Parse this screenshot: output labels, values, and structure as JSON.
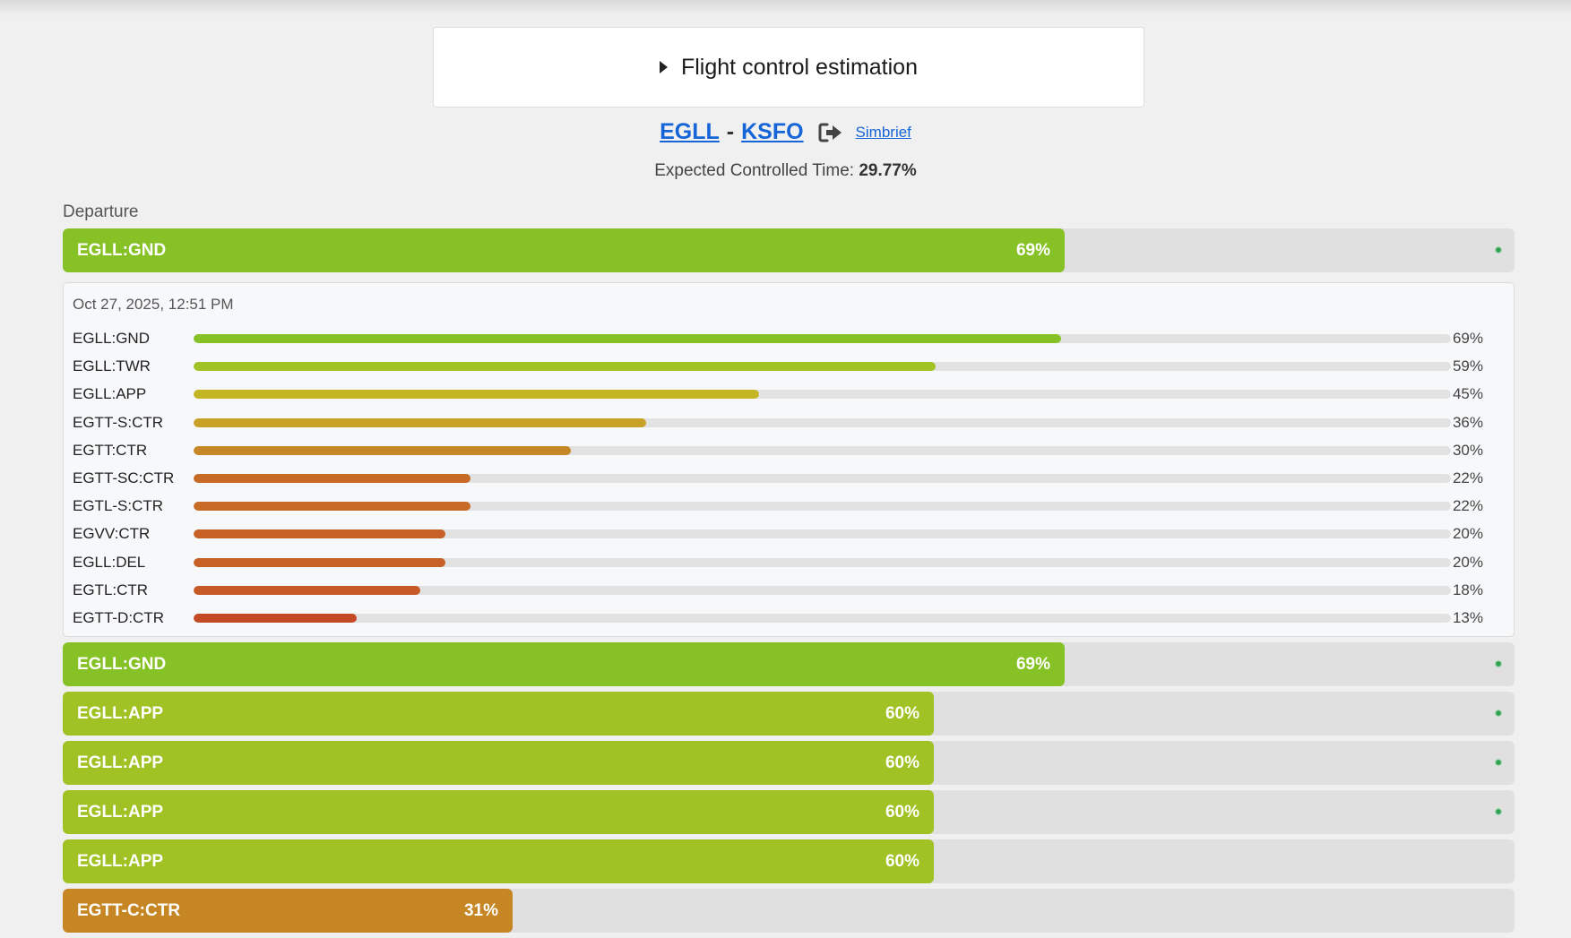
{
  "summary": {
    "title": "Flight control estimation"
  },
  "route": {
    "origin": "EGLL",
    "destination": "KSFO",
    "separator": "-",
    "link_label": "Simbrief"
  },
  "expected": {
    "label": "Expected Controlled Time:",
    "value": "29.77%"
  },
  "section": {
    "label": "Departure"
  },
  "detail": {
    "date": "Oct 27, 2025, 12:51 PM",
    "rows": [
      {
        "name": "EGLL:GND",
        "value": "69%",
        "fraction": 0.69,
        "color": "#86c226"
      },
      {
        "name": "EGLL:TWR",
        "value": "59%",
        "fraction": 0.59,
        "color": "#a0c224"
      },
      {
        "name": "EGLL:APP",
        "value": "45%",
        "fraction": 0.45,
        "color": "#c4b524"
      },
      {
        "name": "EGTT-S:CTR",
        "value": "36%",
        "fraction": 0.36,
        "color": "#c9a127"
      },
      {
        "name": "EGTT:CTR",
        "value": "30%",
        "fraction": 0.3,
        "color": "#c68826"
      },
      {
        "name": "EGTT-SC:CTR",
        "value": "22%",
        "fraction": 0.22,
        "color": "#c66a26"
      },
      {
        "name": "EGTL-S:CTR",
        "value": "22%",
        "fraction": 0.22,
        "color": "#c66a26"
      },
      {
        "name": "EGVV:CTR",
        "value": "20%",
        "fraction": 0.2,
        "color": "#c66026"
      },
      {
        "name": "EGLL:DEL",
        "value": "20%",
        "fraction": 0.2,
        "color": "#c66026"
      },
      {
        "name": "EGTL:CTR",
        "value": "18%",
        "fraction": 0.18,
        "color": "#c55a26"
      },
      {
        "name": "EGTT-D:CTR",
        "value": "13%",
        "fraction": 0.13,
        "color": "#c44a25"
      }
    ]
  },
  "bars": [
    {
      "name": "EGLL:GND",
      "value": "69%",
      "fraction": 0.69,
      "color": "#86c226",
      "dot": true
    },
    {
      "name": "EGLL:GND",
      "value": "69%",
      "fraction": 0.69,
      "color": "#86c226",
      "dot": true
    },
    {
      "name": "EGLL:APP",
      "value": "60%",
      "fraction": 0.6,
      "color": "#a1c224",
      "dot": true
    },
    {
      "name": "EGLL:APP",
      "value": "60%",
      "fraction": 0.6,
      "color": "#a1c224",
      "dot": true
    },
    {
      "name": "EGLL:APP",
      "value": "60%",
      "fraction": 0.6,
      "color": "#a1c224",
      "dot": true
    },
    {
      "name": "EGLL:APP",
      "value": "60%",
      "fraction": 0.6,
      "color": "#a1c224",
      "dot": false
    },
    {
      "name": "EGTT-C:CTR",
      "value": "31%",
      "fraction": 0.31,
      "color": "#c68623",
      "dot": false
    }
  ]
}
